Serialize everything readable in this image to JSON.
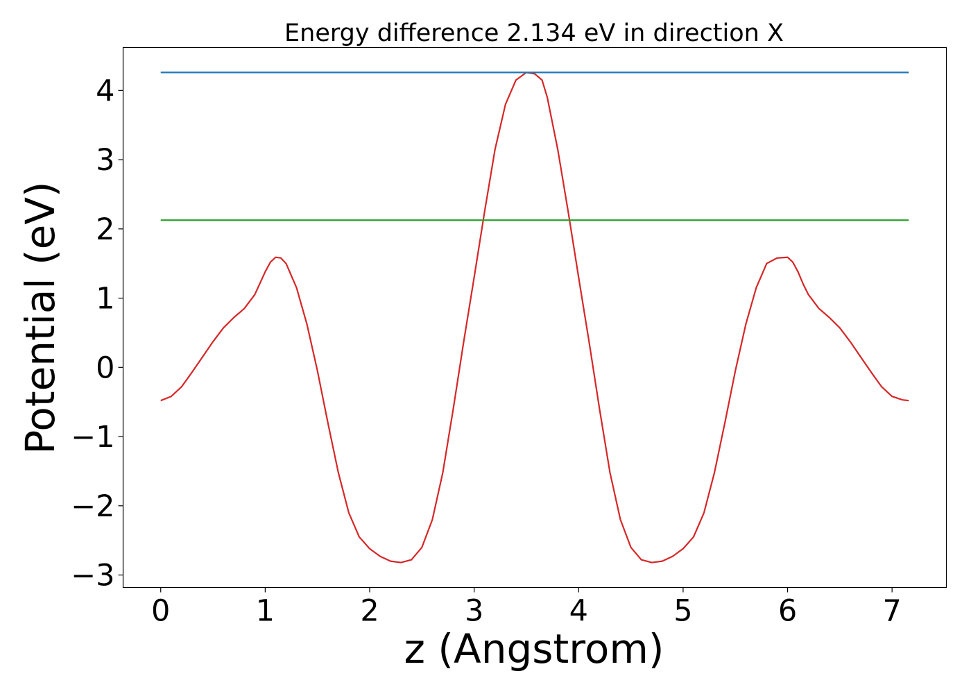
{
  "chart_data": {
    "type": "line",
    "title": "Energy difference 2.134 eV in direction X",
    "xlabel": "z (Angstrom)",
    "ylabel": "Potential (eV)",
    "xlim": [
      -0.36,
      7.52
    ],
    "ylim": [
      -3.18,
      4.62
    ],
    "x_ticks": [
      0,
      1,
      2,
      3,
      4,
      5,
      6,
      7
    ],
    "x_tick_labels": [
      "0",
      "1",
      "2",
      "3",
      "4",
      "5",
      "6",
      "7"
    ],
    "y_ticks": [
      -3,
      -2,
      -1,
      0,
      1,
      2,
      3,
      4
    ],
    "y_tick_labels": [
      "−3",
      "−2",
      "−1",
      "0",
      "1",
      "2",
      "3",
      "4"
    ],
    "grid": false,
    "series": [
      {
        "color": "#d62728",
        "x": [
          0,
          0.1,
          0.2,
          0.3,
          0.4,
          0.5,
          0.6,
          0.7,
          0.8,
          0.9,
          1.0,
          1.05,
          1.1,
          1.15,
          1.2,
          1.3,
          1.4,
          1.5,
          1.6,
          1.7,
          1.8,
          1.9,
          2.0,
          2.1,
          2.2,
          2.3,
          2.4,
          2.5,
          2.6,
          2.7,
          2.8,
          2.9,
          3.0,
          3.1,
          3.2,
          3.3,
          3.4,
          3.5,
          3.58,
          3.65,
          3.7,
          3.8,
          3.9,
          4.0,
          4.1,
          4.2,
          4.3,
          4.4,
          4.5,
          4.6,
          4.7,
          4.8,
          4.9,
          5.0,
          5.1,
          5.2,
          5.3,
          5.4,
          5.5,
          5.6,
          5.7,
          5.8,
          5.9,
          6.0,
          6.05,
          6.1,
          6.15,
          6.2,
          6.3,
          6.4,
          6.5,
          6.6,
          6.7,
          6.8,
          6.9,
          7.0,
          7.1,
          7.16
        ],
        "y": [
          -0.48,
          -0.42,
          -0.28,
          -0.07,
          0.15,
          0.37,
          0.57,
          0.72,
          0.85,
          1.05,
          1.38,
          1.52,
          1.59,
          1.58,
          1.5,
          1.15,
          0.62,
          -0.05,
          -0.8,
          -1.52,
          -2.1,
          -2.45,
          -2.62,
          -2.73,
          -2.8,
          -2.82,
          -2.78,
          -2.6,
          -2.2,
          -1.52,
          -0.6,
          0.37,
          1.3,
          2.25,
          3.15,
          3.8,
          4.15,
          4.26,
          4.24,
          4.15,
          3.9,
          3.15,
          2.25,
          1.3,
          0.37,
          -0.6,
          -1.52,
          -2.2,
          -2.6,
          -2.78,
          -2.82,
          -2.8,
          -2.73,
          -2.62,
          -2.45,
          -2.1,
          -1.52,
          -0.8,
          -0.05,
          0.62,
          1.15,
          1.5,
          1.58,
          1.59,
          1.52,
          1.38,
          1.2,
          1.05,
          0.85,
          0.72,
          0.57,
          0.37,
          0.15,
          -0.07,
          -0.28,
          -0.42,
          -0.47,
          -0.48
        ]
      },
      {
        "color": "#1f77b4",
        "x": [
          0,
          7.16
        ],
        "y": [
          4.26,
          4.26
        ]
      },
      {
        "color": "#2ca02c",
        "x": [
          0,
          7.16
        ],
        "y": [
          2.126,
          2.126
        ]
      }
    ]
  }
}
